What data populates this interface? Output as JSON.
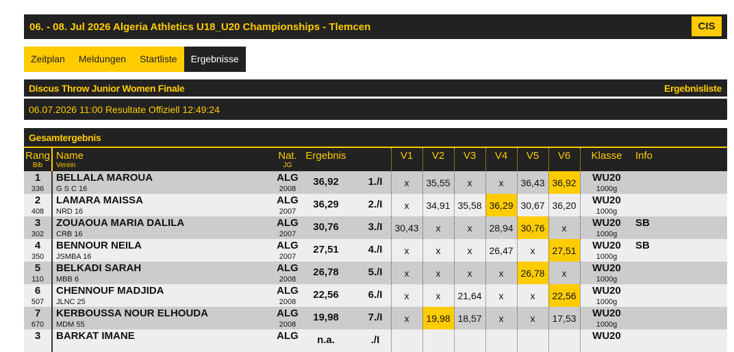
{
  "header": {
    "title": "06. - 08. Jul 2026 Algeria Athletics U18_U20 Championships - Tlemcen",
    "button": "CIS"
  },
  "nav": {
    "tabs": [
      "Zeitplan",
      "Meldungen",
      "Startliste",
      "Ergebnisse"
    ],
    "active": 3
  },
  "event": {
    "title": "Discus Throw Junior Women Finale",
    "link": "Ergebnisliste",
    "status": "06.07.2026 11:00 Resultate Offiziell 12:49:24"
  },
  "section": {
    "title": "Gesamtergebnis"
  },
  "table": {
    "columns": {
      "rank": "Rang",
      "bib": "Bib",
      "name": "Name",
      "club": "Verein",
      "nat": "Nat.",
      "year": "JG",
      "result": "Ergebnis",
      "attempts": [
        "V1",
        "V2",
        "V3",
        "V4",
        "V5",
        "V6"
      ],
      "class": "Klasse",
      "info": "Info"
    },
    "rows": [
      {
        "rank": "1",
        "bib": "336",
        "name": "BELLALA MAROUA",
        "club": "G S C 16",
        "nat": "ALG",
        "year": "2008",
        "result": "36,92",
        "place": "1./I",
        "attempts": [
          "x",
          "35,55",
          "x",
          "x",
          "36,43",
          "36,92"
        ],
        "class": "WU20",
        "implement": "1000g"
      },
      {
        "rank": "2",
        "bib": "408",
        "name": "LAMARA MAISSA",
        "club": "NRD 16",
        "nat": "ALG",
        "year": "2007",
        "result": "36,29",
        "place": "2./I",
        "attempts": [
          "x",
          "34,91",
          "35,58",
          "36,29",
          "30,67",
          "36,20"
        ],
        "class": "WU20",
        "implement": "1000g"
      },
      {
        "rank": "3",
        "bib": "302",
        "name": "ZOUAOUA MARIA DALILA",
        "club": "CRB 16",
        "nat": "ALG",
        "year": "2007",
        "result": "30,76",
        "place": "3./I",
        "attempts": [
          "30,43",
          "x",
          "x",
          "28,94",
          "30,76",
          "x"
        ],
        "class": "WU20",
        "implement": "1000g",
        "info": "SB"
      },
      {
        "rank": "4",
        "bib": "350",
        "name": "BENNOUR NEILA",
        "club": "JSMBA 16",
        "nat": "ALG",
        "year": "2007",
        "result": "27,51",
        "place": "4./I",
        "attempts": [
          "x",
          "x",
          "x",
          "26,47",
          "x",
          "27,51"
        ],
        "class": "WU20",
        "implement": "1000g",
        "info": "SB"
      },
      {
        "rank": "5",
        "bib": "110",
        "name": "BELKADI SARAH",
        "club": "MBB 6",
        "nat": "ALG",
        "year": "2008",
        "result": "26,78",
        "place": "5./I",
        "attempts": [
          "x",
          "x",
          "x",
          "x",
          "26,78",
          "x"
        ],
        "class": "WU20",
        "implement": "1000g"
      },
      {
        "rank": "6",
        "bib": "507",
        "name": "CHENNOUF MADJIDA",
        "club": "JLNC 25",
        "nat": "ALG",
        "year": "2008",
        "result": "22,56",
        "place": "6./I",
        "attempts": [
          "x",
          "x",
          "21,64",
          "x",
          "x",
          "22,56"
        ],
        "class": "WU20",
        "implement": "1000g"
      },
      {
        "rank": "7",
        "bib": "670",
        "name": "KERBOUSSA NOUR ELHOUDA",
        "club": "MDM 55",
        "nat": "ALG",
        "year": "2008",
        "result": "19,98",
        "place": "7./I",
        "attempts": [
          "x",
          "19,98",
          "18,57",
          "x",
          "x",
          "17,53"
        ],
        "class": "WU20",
        "implement": "1000g"
      },
      {
        "rank": "3",
        "name": "BARKAT IMANE",
        "nat": "ALG",
        "result": "n.a.",
        "place": "./I",
        "class": "WU20"
      }
    ]
  }
}
